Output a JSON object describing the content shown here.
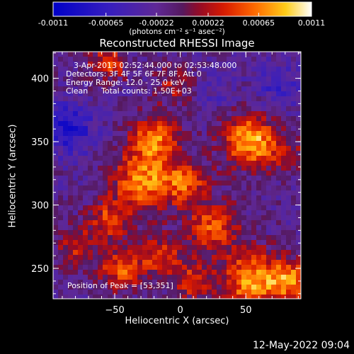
{
  "colorbar": {
    "tick_labels": [
      "-0.0011",
      "-0.00065",
      "-0.00022",
      "0.00022",
      "0.00065",
      "0.0011"
    ],
    "tick_values": [
      -0.0011,
      -0.00065,
      -0.00022,
      0.00022,
      0.00065,
      0.0011
    ],
    "range": [
      -0.0011,
      0.0011
    ],
    "units_label": "(photons cm⁻² s⁻¹ asec⁻²)"
  },
  "chart_data": {
    "type": "heatmap",
    "title": "Reconstructed RHESSI Image",
    "xlabel": "Heliocentric X (arcsec)",
    "ylabel": "Heliocentric Y (arcsec)",
    "xlim": [
      -97,
      92
    ],
    "ylim": [
      226,
      421
    ],
    "x_ticks": [
      -50,
      0,
      50
    ],
    "y_ticks": [
      250,
      300,
      350,
      400
    ],
    "annotations": {
      "time": "3-Apr-2013 02:52:44.000 to 02:53:48.000",
      "detectors": "Detectors: 3F 4F 5F 6F 7F 8F, Att 0",
      "energy": "Energy Range: 12.0 - 25.0 keV",
      "method": "Clean",
      "counts": "Total counts: 1.50E+03",
      "peak": "Position of Peak = [53,351]"
    },
    "peak_position": [
      53,
      351
    ],
    "sources": [
      {
        "x": 53,
        "y": 351,
        "amp": 0.00105,
        "sigma": 14
      },
      {
        "x": -20,
        "y": 352,
        "amp": 0.0008,
        "sigma": 13
      },
      {
        "x": -28,
        "y": 318,
        "amp": 0.0009,
        "sigma": 16
      },
      {
        "x": 5,
        "y": 318,
        "amp": 0.00065,
        "sigma": 12
      },
      {
        "x": 25,
        "y": 282,
        "amp": 0.0007,
        "sigma": 14
      },
      {
        "x": -55,
        "y": 288,
        "amp": 0.0006,
        "sigma": 11
      },
      {
        "x": -80,
        "y": 268,
        "amp": 0.00055,
        "sigma": 10
      },
      {
        "x": 55,
        "y": 240,
        "amp": 0.00095,
        "sigma": 16
      },
      {
        "x": 85,
        "y": 240,
        "amp": 0.0008,
        "sigma": 11
      },
      {
        "x": -45,
        "y": 250,
        "amp": 0.0007,
        "sigma": 12
      },
      {
        "x": -15,
        "y": 260,
        "amp": 0.0006,
        "sigma": 11
      },
      {
        "x": 10,
        "y": 240,
        "amp": 0.0006,
        "sigma": 10
      },
      {
        "x": -55,
        "y": 412,
        "amp": 0.0006,
        "sigma": 10
      },
      {
        "x": -5,
        "y": 395,
        "amp": 0.0004,
        "sigma": 10
      },
      {
        "x": 80,
        "y": 340,
        "amp": 0.0004,
        "sigma": 10
      },
      {
        "x": -85,
        "y": 360,
        "amp": -0.0006,
        "sigma": 14
      },
      {
        "x": 75,
        "y": 395,
        "amp": -0.0004,
        "sigma": 12
      },
      {
        "x": 30,
        "y": 390,
        "amp": -0.0002,
        "sigma": 10
      }
    ]
  },
  "footer": {
    "timestamp": "12-May-2022 09:04"
  }
}
